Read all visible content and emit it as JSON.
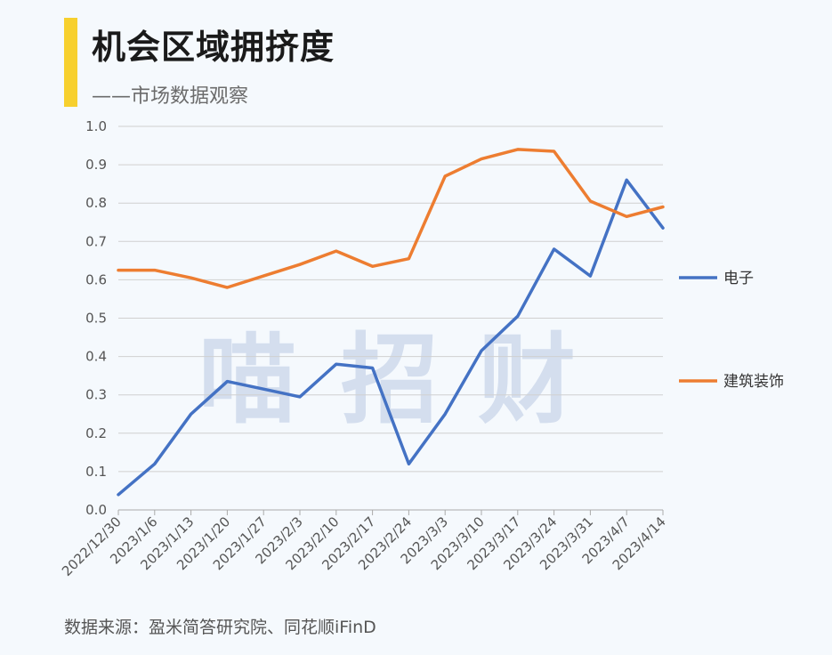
{
  "header": {
    "title": "机会区域拥挤度",
    "subtitle": "——市场数据观察"
  },
  "watermark": [
    "喵",
    "招",
    "财"
  ],
  "source": "数据来源：盈米简答研究院、同花顺iFinD",
  "colors": {
    "accent": "#f7d02e",
    "series_electronics": "#4472c4",
    "series_construction": "#ed7d31",
    "grid": "#d0d0d0"
  },
  "chart_data": {
    "type": "line",
    "title": "机会区域拥挤度",
    "xlabel": "",
    "ylabel": "",
    "ylim": [
      0,
      1.0
    ],
    "yticks": [
      "0.0",
      "0.1",
      "0.2",
      "0.3",
      "0.4",
      "0.5",
      "0.6",
      "0.7",
      "0.8",
      "0.9",
      "1.0"
    ],
    "categories": [
      "2022/12/30",
      "2023/1/6",
      "2023/1/13",
      "2023/1/20",
      "2023/1/27",
      "2023/2/3",
      "2023/2/10",
      "2023/2/17",
      "2023/2/24",
      "2023/3/3",
      "2023/3/10",
      "2023/3/17",
      "2023/3/24",
      "2023/3/31",
      "2023/4/7",
      "2023/4/14"
    ],
    "grid": true,
    "legend_position": "right",
    "series": [
      {
        "name": "电子",
        "color": "#4472c4",
        "values": [
          0.04,
          0.12,
          0.25,
          0.335,
          0.315,
          0.295,
          0.38,
          0.37,
          0.12,
          0.25,
          0.415,
          0.505,
          0.68,
          0.61,
          0.86,
          0.735
        ]
      },
      {
        "name": "建筑装饰",
        "color": "#ed7d31",
        "values": [
          0.625,
          0.625,
          0.605,
          0.58,
          0.61,
          0.64,
          0.675,
          0.635,
          0.655,
          0.87,
          0.915,
          0.94,
          0.935,
          0.805,
          0.765,
          0.79
        ]
      }
    ]
  }
}
